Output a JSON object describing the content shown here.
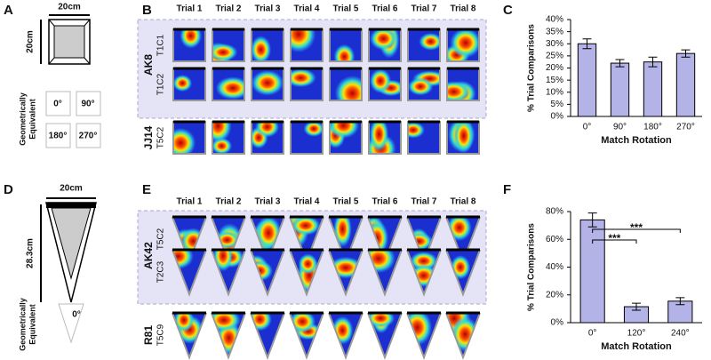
{
  "panel_labels": [
    "A",
    "B",
    "C",
    "D",
    "E",
    "F"
  ],
  "arena_a": {
    "width": "20cm",
    "height": "20cm",
    "equivalent_label": [
      "Geometrically",
      "Equivalent"
    ],
    "rotations": [
      "0°",
      "90°",
      "180°",
      "270°"
    ]
  },
  "arena_d": {
    "width": "20cm",
    "height": "28.3cm",
    "equivalent_label": [
      "Geometrically",
      "Equivalent"
    ],
    "rotations": [
      "0°"
    ]
  },
  "trials": [
    "Trial 1",
    "Trial 2",
    "Trial 3",
    "Trial 4",
    "Trial 5",
    "Trial 6",
    "Trial 7",
    "Trial 8"
  ],
  "panel_b": {
    "groups": [
      {
        "animal": "AK8",
        "cells": [
          "T1C1",
          "T1C2"
        ]
      },
      {
        "animal": "JJ14",
        "cells": [
          "T5C2"
        ]
      }
    ]
  },
  "panel_e": {
    "groups": [
      {
        "animal": "AK42",
        "cells": [
          "T5C2",
          "T2C3"
        ]
      },
      {
        "animal": "R81",
        "cells": [
          "T5C9"
        ]
      }
    ]
  },
  "chart_data": [
    {
      "type": "bar",
      "categories": [
        "0°",
        "90°",
        "180°",
        "270°"
      ],
      "values": [
        30,
        22,
        22.5,
        26
      ],
      "errors": [
        2,
        1.5,
        2,
        1.5
      ],
      "color": "#b3b3e8",
      "xlabel": "Match Rotation",
      "ylabel": "% Trial Comparisons",
      "ylim": [
        0,
        40
      ],
      "yticks": [
        {
          "value": 0,
          "label": "0%"
        },
        {
          "value": 5,
          "label": "5%"
        },
        {
          "value": 10,
          "label": "10%"
        },
        {
          "value": 15,
          "label": "15%"
        },
        {
          "value": 20,
          "label": "20%"
        },
        {
          "value": 25,
          "label": "25%"
        },
        {
          "value": 30,
          "label": "30%"
        },
        {
          "value": 35,
          "label": "35%"
        },
        {
          "value": 40,
          "label": "40%"
        }
      ]
    },
    {
      "type": "bar",
      "categories": [
        "0°",
        "120°",
        "240°"
      ],
      "values": [
        74,
        11.5,
        15.5
      ],
      "errors": [
        5,
        2.5,
        2.5
      ],
      "color": "#b3b3e8",
      "xlabel": "Match Rotation",
      "ylabel": "% Trial Comparisons",
      "ylim": [
        0,
        80
      ],
      "yticks": [
        {
          "value": 0,
          "label": "0%"
        },
        {
          "value": 20,
          "label": "20%"
        },
        {
          "value": 40,
          "label": "40%"
        },
        {
          "value": 60,
          "label": "60%"
        },
        {
          "value": 80,
          "label": "80%"
        }
      ],
      "annotations": [
        "***",
        "***"
      ]
    }
  ]
}
